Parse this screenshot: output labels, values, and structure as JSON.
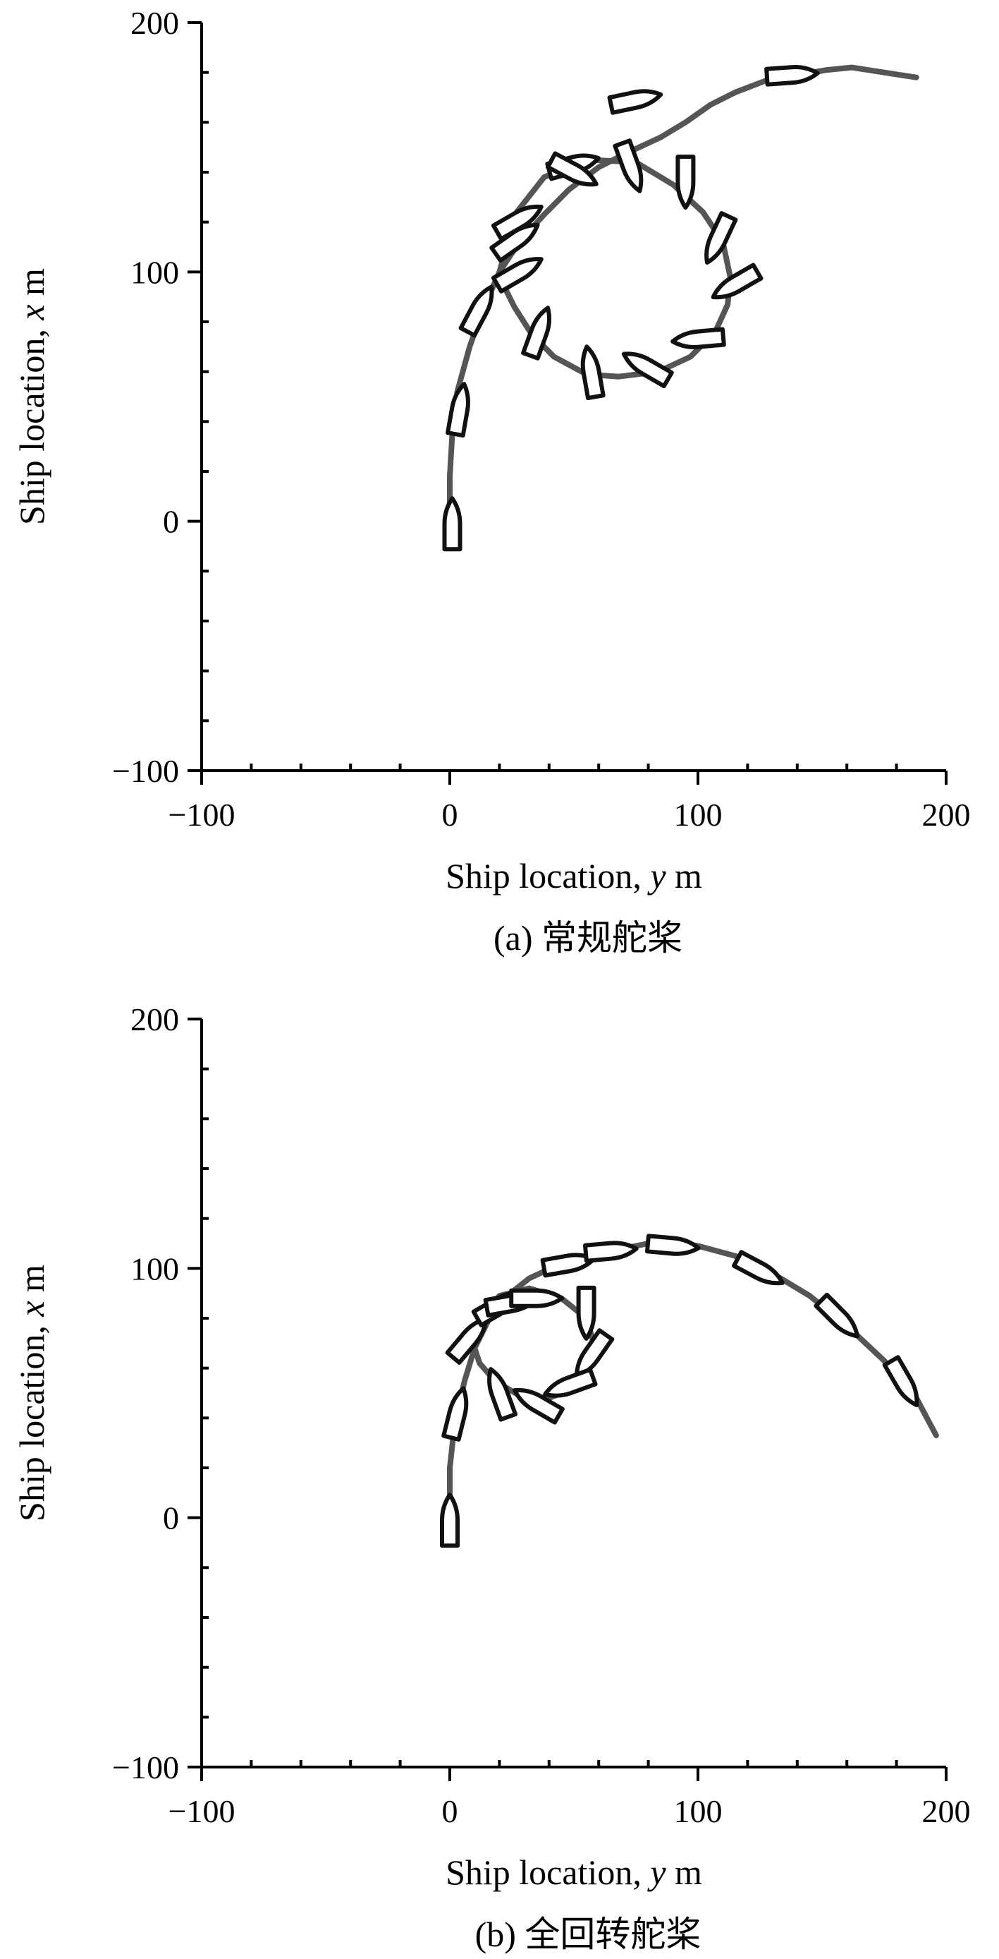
{
  "chart_data": [
    {
      "type": "scatter",
      "panel": "a",
      "caption": "(a) 常规舵桨",
      "xlabel_prefix": "Ship location, ",
      "xlabel_var": "y",
      "xlabel_unit": " m",
      "ylabel_prefix": "Ship location, ",
      "ylabel_var": "x",
      "ylabel_unit": " m",
      "xlim": [
        -100,
        200
      ],
      "ylim": [
        -100,
        200
      ],
      "xticks": [
        -100,
        0,
        100,
        200
      ],
      "yticks": [
        -100,
        0,
        100,
        200
      ],
      "xtick_labels": [
        "−100",
        "0",
        "100",
        "200"
      ],
      "ytick_labels": [
        "−100",
        "0",
        "100",
        "200"
      ],
      "minor_step": 20,
      "series": [
        {
          "role": "trajectory",
          "points": [
            [
              0,
              0
            ],
            [
              0,
              18
            ],
            [
              1,
              35
            ],
            [
              3,
              52
            ],
            [
              8,
              70
            ],
            [
              13,
              84
            ],
            [
              20,
              100
            ],
            [
              28,
              112
            ],
            [
              38,
              123
            ],
            [
              48,
              133
            ],
            [
              60,
              142
            ],
            [
              72,
              148
            ],
            [
              85,
              154
            ],
            [
              95,
              160
            ],
            [
              105,
              167
            ],
            [
              115,
              172
            ],
            [
              128,
              177
            ],
            [
              140,
              179
            ],
            [
              152,
              181
            ],
            [
              162,
              182
            ],
            [
              175,
              180
            ],
            [
              188,
              178
            ]
          ]
        },
        {
          "role": "turning-circle",
          "points": [
            [
              20,
              100
            ],
            [
              27,
              124
            ],
            [
              38,
              138
            ],
            [
              55,
              145
            ],
            [
              75,
              144
            ],
            [
              90,
              135
            ],
            [
              102,
              124
            ],
            [
              110,
              112
            ],
            [
              113,
              98
            ],
            [
              112,
              87
            ],
            [
              107,
              76
            ],
            [
              97,
              66
            ],
            [
              84,
              60
            ],
            [
              68,
              58
            ],
            [
              55,
              59
            ],
            [
              42,
              66
            ],
            [
              33,
              75
            ],
            [
              26,
              86
            ],
            [
              22,
              94
            ],
            [
              20,
              100
            ]
          ]
        }
      ],
      "ships": [
        {
          "y": 1,
          "x": -1,
          "heading": 0
        },
        {
          "y": 4,
          "x": 45,
          "heading": 10
        },
        {
          "y": 12,
          "x": 85,
          "heading": 28
        },
        {
          "y": 27,
          "x": 113,
          "heading": 55
        },
        {
          "y": 28,
          "x": 121,
          "heading": 60
        },
        {
          "y": 50,
          "x": 143,
          "heading": 75
        },
        {
          "y": 50,
          "x": 140,
          "heading": 118
        },
        {
          "y": 73,
          "x": 142,
          "heading": 160
        },
        {
          "y": 95,
          "x": 136,
          "heading": 180
        },
        {
          "y": 108,
          "x": 113,
          "heading": 205
        },
        {
          "y": 115,
          "x": 95,
          "heading": 240
        },
        {
          "y": 100,
          "x": 73,
          "heading": 265
        },
        {
          "y": 79,
          "x": 62,
          "heading": 300
        },
        {
          "y": 57,
          "x": 60,
          "heading": 350
        },
        {
          "y": 36,
          "x": 76,
          "heading": 20
        },
        {
          "y": 28,
          "x": 100,
          "heading": 60
        },
        {
          "y": 75,
          "x": 169,
          "heading": 78
        },
        {
          "y": 138,
          "x": 179,
          "heading": 86
        }
      ]
    },
    {
      "type": "scatter",
      "panel": "b",
      "caption": "(b) 全回转舵桨",
      "xlabel_prefix": "Ship location, ",
      "xlabel_var": "y",
      "xlabel_unit": " m",
      "ylabel_prefix": "Ship location, ",
      "ylabel_var": "x",
      "ylabel_unit": " m",
      "xlim": [
        -100,
        200
      ],
      "ylim": [
        -100,
        200
      ],
      "xticks": [
        -100,
        0,
        100,
        200
      ],
      "yticks": [
        -100,
        0,
        100,
        200
      ],
      "xtick_labels": [
        "−100",
        "0",
        "100",
        "200"
      ],
      "ytick_labels": [
        "−100",
        "0",
        "100",
        "200"
      ],
      "minor_step": 20,
      "series": [
        {
          "role": "trajectory",
          "points": [
            [
              0,
              0
            ],
            [
              0,
              20
            ],
            [
              2,
              38
            ],
            [
              6,
              55
            ],
            [
              10,
              68
            ],
            [
              16,
              80
            ],
            [
              22,
              88
            ],
            [
              32,
              96
            ],
            [
              45,
              102
            ],
            [
              60,
              106
            ],
            [
              75,
              109
            ],
            [
              85,
              111
            ],
            [
              100,
              109
            ],
            [
              115,
              105
            ],
            [
              130,
              98
            ],
            [
              145,
              89
            ],
            [
              160,
              77
            ],
            [
              175,
              63
            ],
            [
              188,
              48
            ],
            [
              196,
              33
            ]
          ]
        },
        {
          "role": "turning-circle",
          "points": [
            [
              10,
              68
            ],
            [
              13,
              80
            ],
            [
              20,
              89
            ],
            [
              32,
              92
            ],
            [
              45,
              88
            ],
            [
              55,
              80
            ],
            [
              58,
              70
            ],
            [
              56,
              60
            ],
            [
              50,
              52
            ],
            [
              40,
              48
            ],
            [
              28,
              49
            ],
            [
              18,
              55
            ],
            [
              12,
              62
            ],
            [
              10,
              68
            ]
          ]
        }
      ],
      "ships": [
        {
          "y": 0,
          "x": -1,
          "heading": 0
        },
        {
          "y": 3,
          "x": 42,
          "heading": 14
        },
        {
          "y": 8,
          "x": 72,
          "heading": 40
        },
        {
          "y": 20,
          "x": 85,
          "heading": 60
        },
        {
          "y": 25,
          "x": 86,
          "heading": 80
        },
        {
          "y": 35,
          "x": 88,
          "heading": 90
        },
        {
          "y": 48,
          "x": 102,
          "heading": 80
        },
        {
          "y": 55,
          "x": 82,
          "heading": 180
        },
        {
          "y": 57,
          "x": 65,
          "heading": 215
        },
        {
          "y": 48,
          "x": 53,
          "heading": 250
        },
        {
          "y": 35,
          "x": 46,
          "heading": 300
        },
        {
          "y": 20,
          "x": 50,
          "heading": 340
        },
        {
          "y": 65,
          "x": 107,
          "heading": 85
        },
        {
          "y": 90,
          "x": 109,
          "heading": 95
        },
        {
          "y": 125,
          "x": 99,
          "heading": 118
        },
        {
          "y": 157,
          "x": 80,
          "heading": 135
        },
        {
          "y": 183,
          "x": 54,
          "heading": 150
        }
      ]
    }
  ]
}
